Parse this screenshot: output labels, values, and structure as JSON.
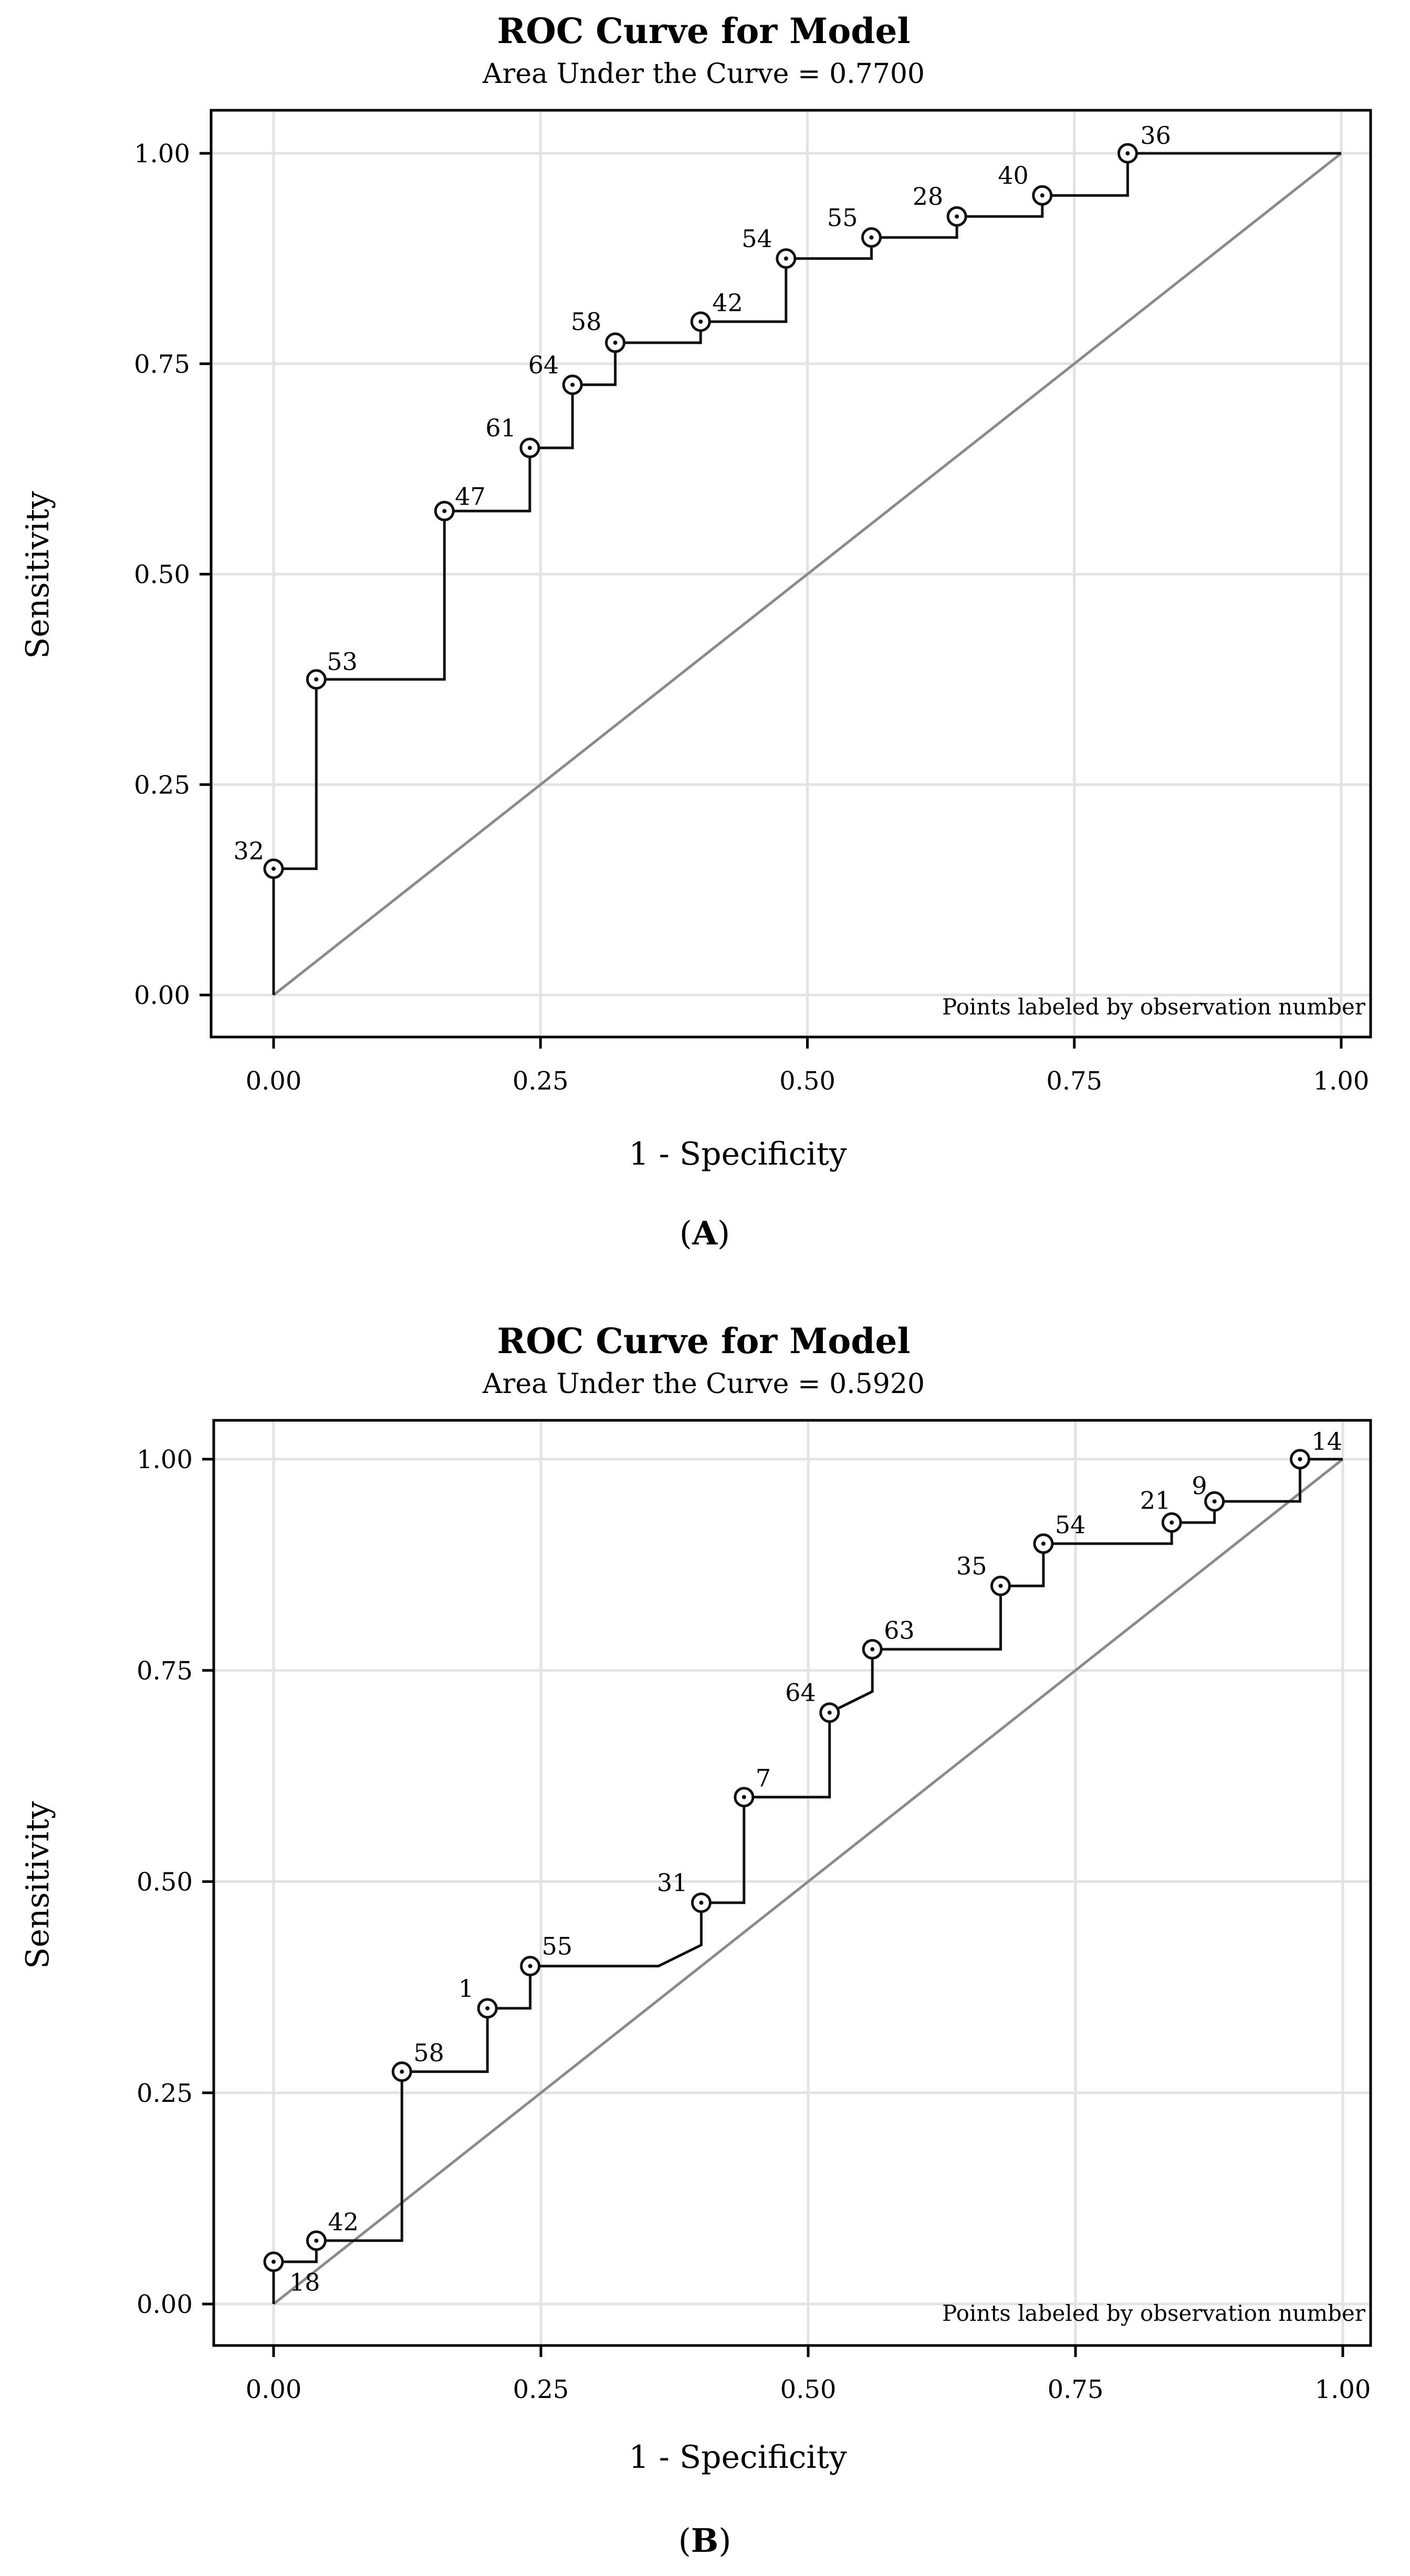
{
  "chart_data": [
    {
      "type": "line",
      "panel": "A",
      "title": "ROC Curve for Model",
      "subtitle": "Area Under the Curve = 0.7700",
      "xlabel": "1 - Specificity",
      "ylabel": "Sensitivity",
      "xlim": [
        -0.05,
        1.05
      ],
      "ylim": [
        -0.05,
        1.05
      ],
      "xticks": [
        "0.00",
        "0.25",
        "0.50",
        "0.75",
        "1.00"
      ],
      "yticks": [
        "0.00",
        "0.25",
        "0.50",
        "0.75",
        "1.00"
      ],
      "grid": true,
      "note": "Points labeled by observation number",
      "points": [
        {
          "x": 0.0,
          "y": 0.15,
          "label": "32"
        },
        {
          "x": 0.04,
          "y": 0.375,
          "label": "53"
        },
        {
          "x": 0.16,
          "y": 0.575,
          "label": "47"
        },
        {
          "x": 0.24,
          "y": 0.65,
          "label": "61"
        },
        {
          "x": 0.28,
          "y": 0.725,
          "label": "64"
        },
        {
          "x": 0.32,
          "y": 0.775,
          "label": "58"
        },
        {
          "x": 0.4,
          "y": 0.8,
          "label": "42"
        },
        {
          "x": 0.48,
          "y": 0.875,
          "label": "54"
        },
        {
          "x": 0.56,
          "y": 0.9,
          "label": "55"
        },
        {
          "x": 0.64,
          "y": 0.925,
          "label": "28"
        },
        {
          "x": 0.72,
          "y": 0.95,
          "label": "40"
        },
        {
          "x": 0.8,
          "y": 1.0,
          "label": "36"
        }
      ],
      "step_path": [
        [
          0,
          0
        ],
        [
          0,
          0.15
        ],
        [
          0.04,
          0.15
        ],
        [
          0.04,
          0.375
        ],
        [
          0.16,
          0.375
        ],
        [
          0.16,
          0.575
        ],
        [
          0.24,
          0.575
        ],
        [
          0.24,
          0.65
        ],
        [
          0.28,
          0.65
        ],
        [
          0.28,
          0.725
        ],
        [
          0.32,
          0.725
        ],
        [
          0.32,
          0.775
        ],
        [
          0.4,
          0.775
        ],
        [
          0.4,
          0.8
        ],
        [
          0.48,
          0.8
        ],
        [
          0.48,
          0.875
        ],
        [
          0.56,
          0.875
        ],
        [
          0.56,
          0.9
        ],
        [
          0.64,
          0.9
        ],
        [
          0.64,
          0.925
        ],
        [
          0.72,
          0.925
        ],
        [
          0.72,
          0.95
        ],
        [
          0.8,
          0.95
        ],
        [
          0.8,
          1.0
        ],
        [
          1.0,
          1.0
        ]
      ],
      "reference_line": [
        [
          0,
          0
        ],
        [
          1,
          1
        ]
      ]
    },
    {
      "type": "line",
      "panel": "B",
      "title": "ROC Curve for Model",
      "subtitle": "Area Under the Curve = 0.5920",
      "xlabel": "1 - Specificity",
      "ylabel": "Sensitivity",
      "xlim": [
        -0.05,
        1.05
      ],
      "ylim": [
        -0.05,
        1.05
      ],
      "xticks": [
        "0.00",
        "0.25",
        "0.50",
        "0.75",
        "1.00"
      ],
      "yticks": [
        "0.00",
        "0.25",
        "0.50",
        "0.75",
        "1.00"
      ],
      "grid": true,
      "note": "Points labeled by observation number",
      "points": [
        {
          "x": 0.0,
          "y": 0.05,
          "label": "18"
        },
        {
          "x": 0.04,
          "y": 0.075,
          "label": "42"
        },
        {
          "x": 0.12,
          "y": 0.275,
          "label": "58"
        },
        {
          "x": 0.2,
          "y": 0.35,
          "label": "1"
        },
        {
          "x": 0.24,
          "y": 0.4,
          "label": "55"
        },
        {
          "x": 0.4,
          "y": 0.475,
          "label": "31"
        },
        {
          "x": 0.44,
          "y": 0.6,
          "label": "7"
        },
        {
          "x": 0.52,
          "y": 0.7,
          "label": "64"
        },
        {
          "x": 0.56,
          "y": 0.775,
          "label": "63"
        },
        {
          "x": 0.68,
          "y": 0.85,
          "label": "35"
        },
        {
          "x": 0.72,
          "y": 0.9,
          "label": "54"
        },
        {
          "x": 0.84,
          "y": 0.925,
          "label": "21"
        },
        {
          "x": 0.88,
          "y": 0.95,
          "label": "9"
        },
        {
          "x": 0.96,
          "y": 1.0,
          "label": "14"
        }
      ],
      "step_path": [
        [
          0,
          0
        ],
        [
          0,
          0.05
        ],
        [
          0.04,
          0.05
        ],
        [
          0.04,
          0.075
        ],
        [
          0.12,
          0.075
        ],
        [
          0.12,
          0.275
        ],
        [
          0.2,
          0.275
        ],
        [
          0.2,
          0.35
        ],
        [
          0.24,
          0.35
        ],
        [
          0.24,
          0.4
        ],
        [
          0.36,
          0.4
        ],
        [
          0.4,
          0.425
        ],
        [
          0.4,
          0.475
        ],
        [
          0.44,
          0.475
        ],
        [
          0.44,
          0.6
        ],
        [
          0.52,
          0.6
        ],
        [
          0.52,
          0.7
        ],
        [
          0.56,
          0.725
        ],
        [
          0.56,
          0.775
        ],
        [
          0.68,
          0.775
        ],
        [
          0.68,
          0.85
        ],
        [
          0.72,
          0.85
        ],
        [
          0.72,
          0.9
        ],
        [
          0.84,
          0.9
        ],
        [
          0.84,
          0.925
        ],
        [
          0.88,
          0.925
        ],
        [
          0.88,
          0.95
        ],
        [
          0.96,
          0.95
        ],
        [
          0.96,
          1.0
        ],
        [
          1.0,
          1.0
        ]
      ],
      "reference_line": [
        [
          0,
          0
        ],
        [
          1,
          1
        ]
      ]
    }
  ],
  "panel_labels": [
    "A",
    "B"
  ]
}
